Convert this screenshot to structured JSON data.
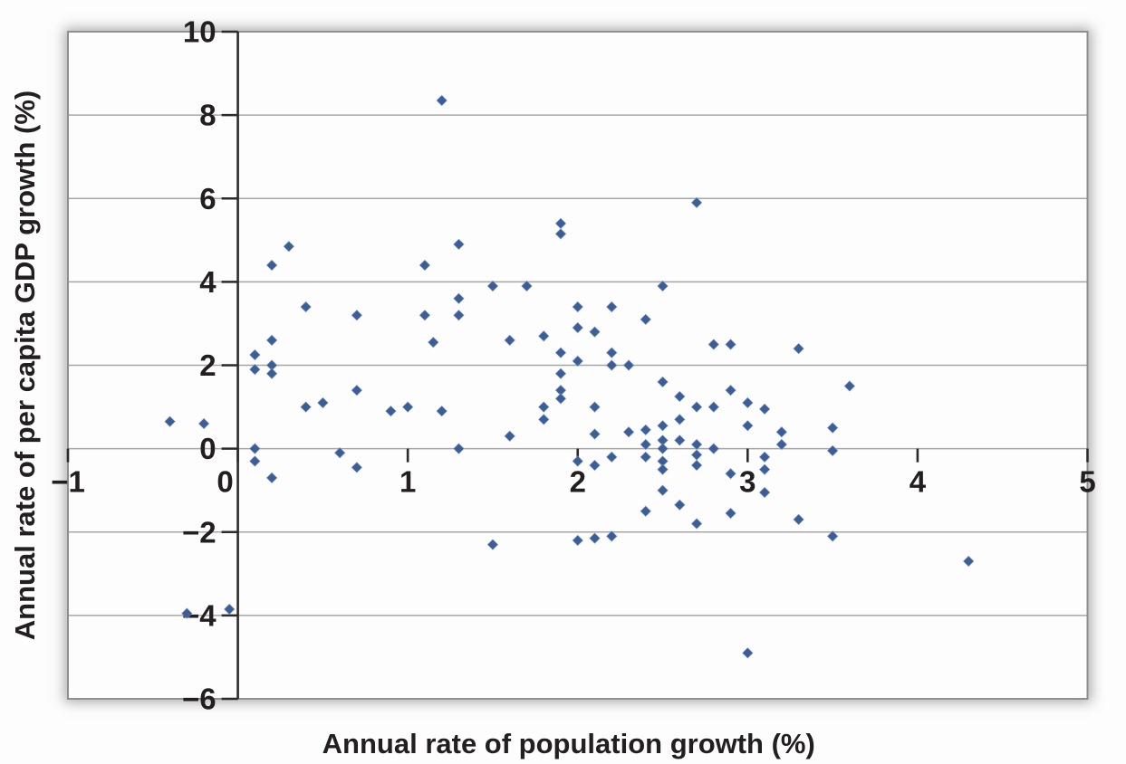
{
  "figure": {
    "background_color": "#fdfdfd",
    "plot_border_color": "#8f8f8f",
    "gridline_color": "#a6a6a6",
    "axis_line_color": "#2d2a2b",
    "text_color": "#231f20",
    "marker_color": "#3b5e96"
  },
  "chart_data": {
    "type": "scatter",
    "title": "",
    "xlabel": "Annual rate of population growth (%)",
    "ylabel": "Annual rate of per capita GDP growth (%)",
    "xlim": [
      -1,
      5
    ],
    "ylim": [
      -6,
      10
    ],
    "x_ticks": [
      -1,
      0,
      1,
      2,
      3,
      4,
      5
    ],
    "y_ticks": [
      10,
      8,
      6,
      4,
      2,
      0,
      -2,
      -4,
      -6
    ],
    "grid": "horizontal",
    "legend": "none",
    "marker": {
      "shape": "diamond",
      "size": 11.5,
      "color": "#3b5e96"
    },
    "points": [
      [
        -0.4,
        0.65
      ],
      [
        -0.2,
        0.6
      ],
      [
        -0.3,
        -3.95
      ],
      [
        -0.05,
        -3.85
      ],
      [
        0.1,
        2.25
      ],
      [
        0.1,
        1.9
      ],
      [
        0.2,
        2.6
      ],
      [
        0.2,
        2.0
      ],
      [
        0.2,
        1.8
      ],
      [
        0.2,
        4.4
      ],
      [
        0.3,
        4.85
      ],
      [
        0.4,
        3.4
      ],
      [
        0.7,
        3.2
      ],
      [
        0.4,
        1.0
      ],
      [
        0.5,
        1.1
      ],
      [
        0.7,
        1.4
      ],
      [
        0.9,
        0.9
      ],
      [
        1.0,
        1.0
      ],
      [
        0.1,
        0.0
      ],
      [
        0.1,
        -0.3
      ],
      [
        0.2,
        -0.7
      ],
      [
        0.6,
        -0.1
      ],
      [
        0.7,
        -0.45
      ],
      [
        1.1,
        4.4
      ],
      [
        1.2,
        8.35
      ],
      [
        1.3,
        4.9
      ],
      [
        1.9,
        5.4
      ],
      [
        1.9,
        5.15
      ],
      [
        2.7,
        5.9
      ],
      [
        1.1,
        3.2
      ],
      [
        1.15,
        2.55
      ],
      [
        1.3,
        3.6
      ],
      [
        1.3,
        3.2
      ],
      [
        1.5,
        3.9
      ],
      [
        1.7,
        3.9
      ],
      [
        1.6,
        2.6
      ],
      [
        1.8,
        2.7
      ],
      [
        2.0,
        3.4
      ],
      [
        2.2,
        3.4
      ],
      [
        2.4,
        3.1
      ],
      [
        2.0,
        2.9
      ],
      [
        2.1,
        2.8
      ],
      [
        2.5,
        3.9
      ],
      [
        2.8,
        2.5
      ],
      [
        2.9,
        2.5
      ],
      [
        1.9,
        2.3
      ],
      [
        2.0,
        2.1
      ],
      [
        2.2,
        2.3
      ],
      [
        2.2,
        2.0
      ],
      [
        2.3,
        2.0
      ],
      [
        1.9,
        1.8
      ],
      [
        1.9,
        1.4
      ],
      [
        1.9,
        1.2
      ],
      [
        1.8,
        1.0
      ],
      [
        1.8,
        0.7
      ],
      [
        2.1,
        1.0
      ],
      [
        2.1,
        0.35
      ],
      [
        1.2,
        0.9
      ],
      [
        1.6,
        0.3
      ],
      [
        1.3,
        0.0
      ],
      [
        2.0,
        -0.3
      ],
      [
        2.1,
        -0.4
      ],
      [
        2.2,
        -0.2
      ],
      [
        2.5,
        1.6
      ],
      [
        2.6,
        1.25
      ],
      [
        2.7,
        1.0
      ],
      [
        2.8,
        1.0
      ],
      [
        2.9,
        1.4
      ],
      [
        3.0,
        1.1
      ],
      [
        3.1,
        0.95
      ],
      [
        2.6,
        0.7
      ],
      [
        2.5,
        0.55
      ],
      [
        3.0,
        0.55
      ],
      [
        2.3,
        0.4
      ],
      [
        2.4,
        0.45
      ],
      [
        2.4,
        0.1
      ],
      [
        2.5,
        0.2
      ],
      [
        2.6,
        0.2
      ],
      [
        2.7,
        0.1
      ],
      [
        2.5,
        0.0
      ],
      [
        2.8,
        0.0
      ],
      [
        2.4,
        -0.2
      ],
      [
        2.7,
        -0.15
      ],
      [
        3.1,
        -0.2
      ],
      [
        2.5,
        -0.3
      ],
      [
        2.5,
        -0.5
      ],
      [
        2.7,
        -0.4
      ],
      [
        2.9,
        -0.6
      ],
      [
        3.1,
        -0.5
      ],
      [
        2.5,
        -1.0
      ],
      [
        3.1,
        -1.05
      ],
      [
        2.4,
        -1.5
      ],
      [
        2.6,
        -1.35
      ],
      [
        2.9,
        -1.55
      ],
      [
        2.7,
        -1.8
      ],
      [
        3.3,
        2.4
      ],
      [
        3.6,
        1.5
      ],
      [
        3.2,
        0.4
      ],
      [
        3.2,
        0.1
      ],
      [
        3.5,
        0.5
      ],
      [
        3.5,
        -0.05
      ],
      [
        1.5,
        -2.3
      ],
      [
        2.0,
        -2.2
      ],
      [
        2.1,
        -2.15
      ],
      [
        2.2,
        -2.1
      ],
      [
        3.3,
        -1.7
      ],
      [
        3.5,
        -2.1
      ],
      [
        4.3,
        -2.7
      ],
      [
        3.0,
        -4.9
      ]
    ]
  }
}
